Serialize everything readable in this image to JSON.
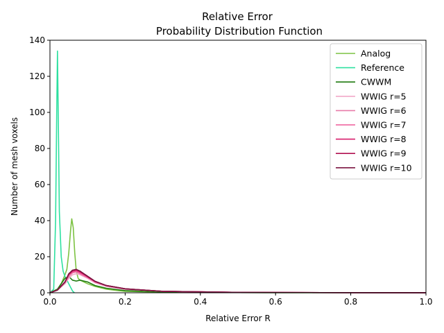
{
  "chart_data": {
    "type": "line",
    "title": "Relative Error",
    "subtitle": "Probability Distribution Function",
    "xlabel": "Relative Error R",
    "ylabel": "Number of mesh voxels",
    "xlim": [
      0,
      1
    ],
    "ylim": [
      0,
      140
    ],
    "xticks": [
      0,
      0.2,
      0.4,
      0.6,
      0.8,
      1
    ],
    "xtick_labels": [
      "0.0",
      "0.2",
      "0.4",
      "0.6",
      "0.8",
      "1.0"
    ],
    "yticks": [
      0,
      20,
      40,
      60,
      80,
      100,
      120,
      140
    ],
    "ytick_labels": [
      "0",
      "20",
      "40",
      "60",
      "80",
      "100",
      "120",
      "140"
    ],
    "grid": false,
    "legend_position": "top-right",
    "series": [
      {
        "name": "Analog",
        "color": "#7cc242",
        "x": [
          0,
          0.02,
          0.03,
          0.04,
          0.045,
          0.05,
          0.055,
          0.058,
          0.062,
          0.066,
          0.07,
          0.075,
          0.08,
          0.09,
          0.1,
          0.12,
          0.15,
          0.18,
          0.2,
          0.3,
          0.5,
          0.8,
          1.0
        ],
        "y": [
          0,
          2,
          5,
          10,
          13,
          22,
          35,
          41,
          36,
          22,
          12,
          8,
          7,
          6,
          5,
          3.5,
          2,
          1.2,
          0.8,
          0.3,
          0.1,
          0.05,
          0
        ]
      },
      {
        "name": "Reference",
        "color": "#2ee0a0",
        "x": [
          0,
          0.01,
          0.015,
          0.018,
          0.02,
          0.022,
          0.025,
          0.03,
          0.035,
          0.04,
          0.045,
          0.05,
          0.055,
          0.06,
          0.065
        ],
        "y": [
          0,
          2,
          40,
          100,
          134,
          100,
          45,
          20,
          12,
          9,
          7,
          5,
          3,
          1,
          0
        ]
      },
      {
        "name": "CWWM",
        "color": "#1f7a0f",
        "x": [
          0,
          0.02,
          0.03,
          0.04,
          0.05,
          0.06,
          0.07,
          0.08,
          0.09,
          0.1,
          0.12,
          0.15,
          0.2,
          0.3,
          0.5,
          0.8,
          1.0
        ],
        "y": [
          0,
          2,
          5,
          8,
          9,
          7,
          6.5,
          7,
          6.5,
          6,
          4,
          2.5,
          1.2,
          0.4,
          0.1,
          0.05,
          0
        ]
      },
      {
        "name": "WWIG r=5",
        "color": "#f2a8c8",
        "x": [
          0,
          0.02,
          0.04,
          0.05,
          0.06,
          0.07,
          0.08,
          0.1,
          0.12,
          0.15,
          0.2,
          0.3,
          0.5,
          0.8,
          1.0
        ],
        "y": [
          0,
          1.5,
          5,
          8,
          10,
          10.5,
          10,
          8,
          5.5,
          3.5,
          2,
          0.8,
          0.2,
          0.05,
          0
        ]
      },
      {
        "name": "WWIG r=6",
        "color": "#e87aa8",
        "x": [
          0,
          0.02,
          0.04,
          0.05,
          0.06,
          0.07,
          0.08,
          0.1,
          0.12,
          0.15,
          0.2,
          0.3,
          0.5,
          0.8,
          1.0
        ],
        "y": [
          0,
          1.5,
          5.5,
          9,
          11,
          11.5,
          10.5,
          8.5,
          6,
          3.8,
          2,
          0.8,
          0.2,
          0.05,
          0
        ]
      },
      {
        "name": "WWIG r=7",
        "color": "#ee5a98",
        "x": [
          0,
          0.02,
          0.04,
          0.05,
          0.06,
          0.07,
          0.08,
          0.1,
          0.12,
          0.15,
          0.2,
          0.3,
          0.5,
          0.8,
          1.0
        ],
        "y": [
          0,
          1.5,
          6,
          10,
          11.5,
          12,
          11,
          8.5,
          6,
          4,
          2.2,
          0.8,
          0.2,
          0.05,
          0
        ]
      },
      {
        "name": "WWIG r=8",
        "color": "#d81b6a",
        "x": [
          0,
          0.02,
          0.04,
          0.05,
          0.06,
          0.07,
          0.08,
          0.1,
          0.12,
          0.15,
          0.2,
          0.3,
          0.5,
          0.8,
          1.0
        ],
        "y": [
          0,
          1.5,
          6,
          10,
          12,
          12.5,
          11.5,
          9,
          6.2,
          4,
          2.2,
          0.8,
          0.2,
          0.05,
          0
        ]
      },
      {
        "name": "WWIG r=9",
        "color": "#b0104f",
        "x": [
          0,
          0.02,
          0.04,
          0.05,
          0.06,
          0.07,
          0.08,
          0.1,
          0.12,
          0.15,
          0.2,
          0.3,
          0.5,
          0.8,
          1.0
        ],
        "y": [
          0,
          1.5,
          6,
          10.5,
          12.5,
          12.8,
          12,
          9,
          6.3,
          4,
          2.2,
          0.8,
          0.2,
          0.05,
          0
        ]
      },
      {
        "name": "WWIG r=10",
        "color": "#7a1540",
        "x": [
          0,
          0.02,
          0.04,
          0.05,
          0.06,
          0.07,
          0.08,
          0.1,
          0.12,
          0.15,
          0.2,
          0.3,
          0.5,
          0.8,
          1.0
        ],
        "y": [
          0,
          1.5,
          6,
          10.5,
          12.5,
          13,
          12,
          9.2,
          6.4,
          4,
          2.2,
          0.8,
          0.2,
          0.05,
          0
        ]
      }
    ]
  }
}
